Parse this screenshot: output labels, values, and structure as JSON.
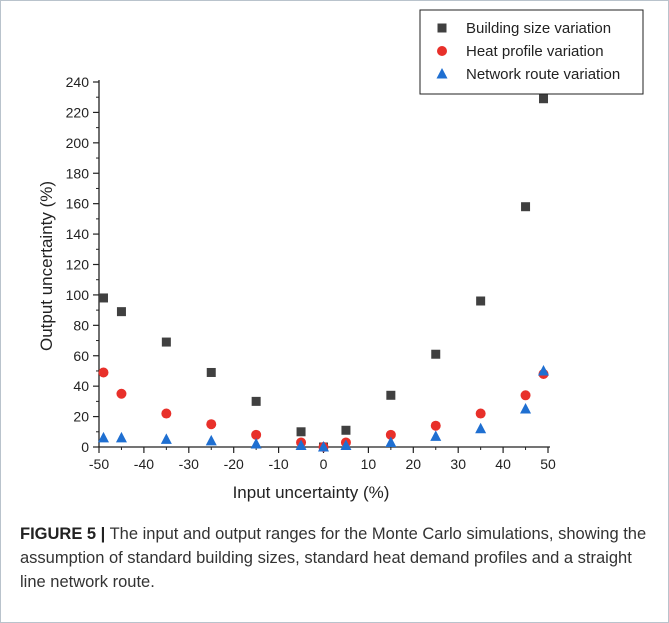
{
  "caption": {
    "label": "FIGURE 5 |",
    "text": " The input and output ranges for the Monte Carlo simulations, showing the assumption of standard building sizes, standard heat demand profiles and a straight line network route."
  },
  "chart_data": {
    "type": "scatter",
    "title": "",
    "xlabel": "Input uncertainty (%)",
    "ylabel": "Output uncertainty (%)",
    "xlim": [
      -50,
      50
    ],
    "ylim": [
      0,
      240
    ],
    "xticks": [
      -50,
      -40,
      -30,
      -20,
      -10,
      0,
      10,
      20,
      30,
      40,
      50
    ],
    "yticks": [
      0,
      20,
      40,
      60,
      80,
      100,
      120,
      140,
      160,
      180,
      200,
      220,
      240
    ],
    "grid": false,
    "legend_position": "top-right",
    "series": [
      {
        "name": "Building size variation",
        "marker": "square",
        "color": "#404040",
        "points": [
          [
            -49,
            98
          ],
          [
            -45,
            89
          ],
          [
            -35,
            69
          ],
          [
            -25,
            49
          ],
          [
            -15,
            30
          ],
          [
            -5,
            10
          ],
          [
            0,
            0
          ],
          [
            5,
            11
          ],
          [
            15,
            34
          ],
          [
            25,
            61
          ],
          [
            35,
            96
          ],
          [
            45,
            158
          ],
          [
            49,
            229
          ]
        ]
      },
      {
        "name": "Heat profile variation",
        "marker": "circle",
        "color": "#e8302a",
        "points": [
          [
            -49,
            49
          ],
          [
            -45,
            35
          ],
          [
            -35,
            22
          ],
          [
            -25,
            15
          ],
          [
            -15,
            8
          ],
          [
            -5,
            3
          ],
          [
            0,
            0
          ],
          [
            5,
            3
          ],
          [
            15,
            8
          ],
          [
            25,
            14
          ],
          [
            35,
            22
          ],
          [
            45,
            34
          ],
          [
            49,
            48
          ]
        ]
      },
      {
        "name": "Network route variation",
        "marker": "triangle",
        "color": "#1f6fd1",
        "points": [
          [
            -49,
            6
          ],
          [
            -45,
            6
          ],
          [
            -35,
            5
          ],
          [
            -25,
            4
          ],
          [
            -15,
            2
          ],
          [
            -5,
            1
          ],
          [
            0,
            0
          ],
          [
            5,
            1
          ],
          [
            15,
            3
          ],
          [
            25,
            7
          ],
          [
            35,
            12
          ],
          [
            45,
            25
          ],
          [
            49,
            50
          ]
        ]
      }
    ]
  }
}
